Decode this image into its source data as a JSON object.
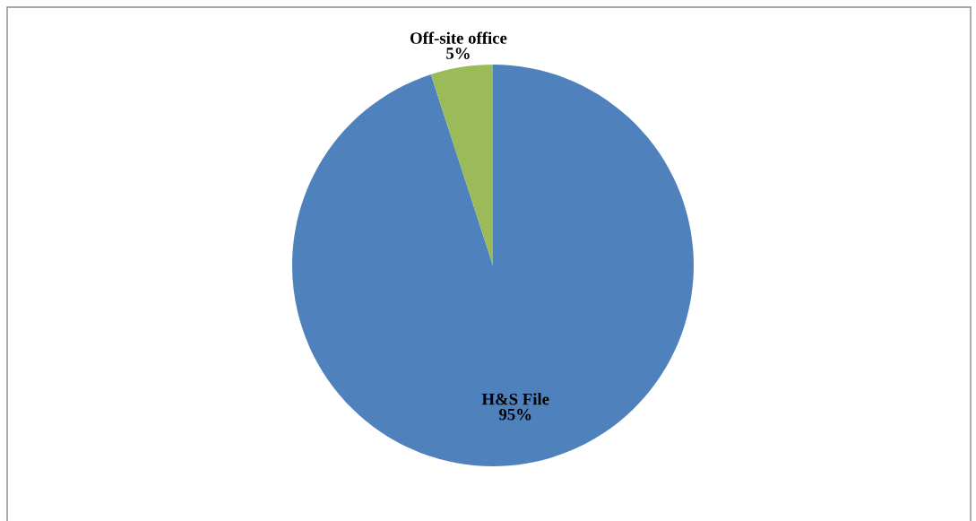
{
  "chart_data": {
    "type": "pie",
    "categories": [
      "H&S File",
      "Off-site office"
    ],
    "values": [
      95,
      5
    ],
    "value_labels": [
      "95%",
      "5%"
    ],
    "colors": [
      "#4f81bd",
      "#9bbb59"
    ],
    "legend": false
  }
}
